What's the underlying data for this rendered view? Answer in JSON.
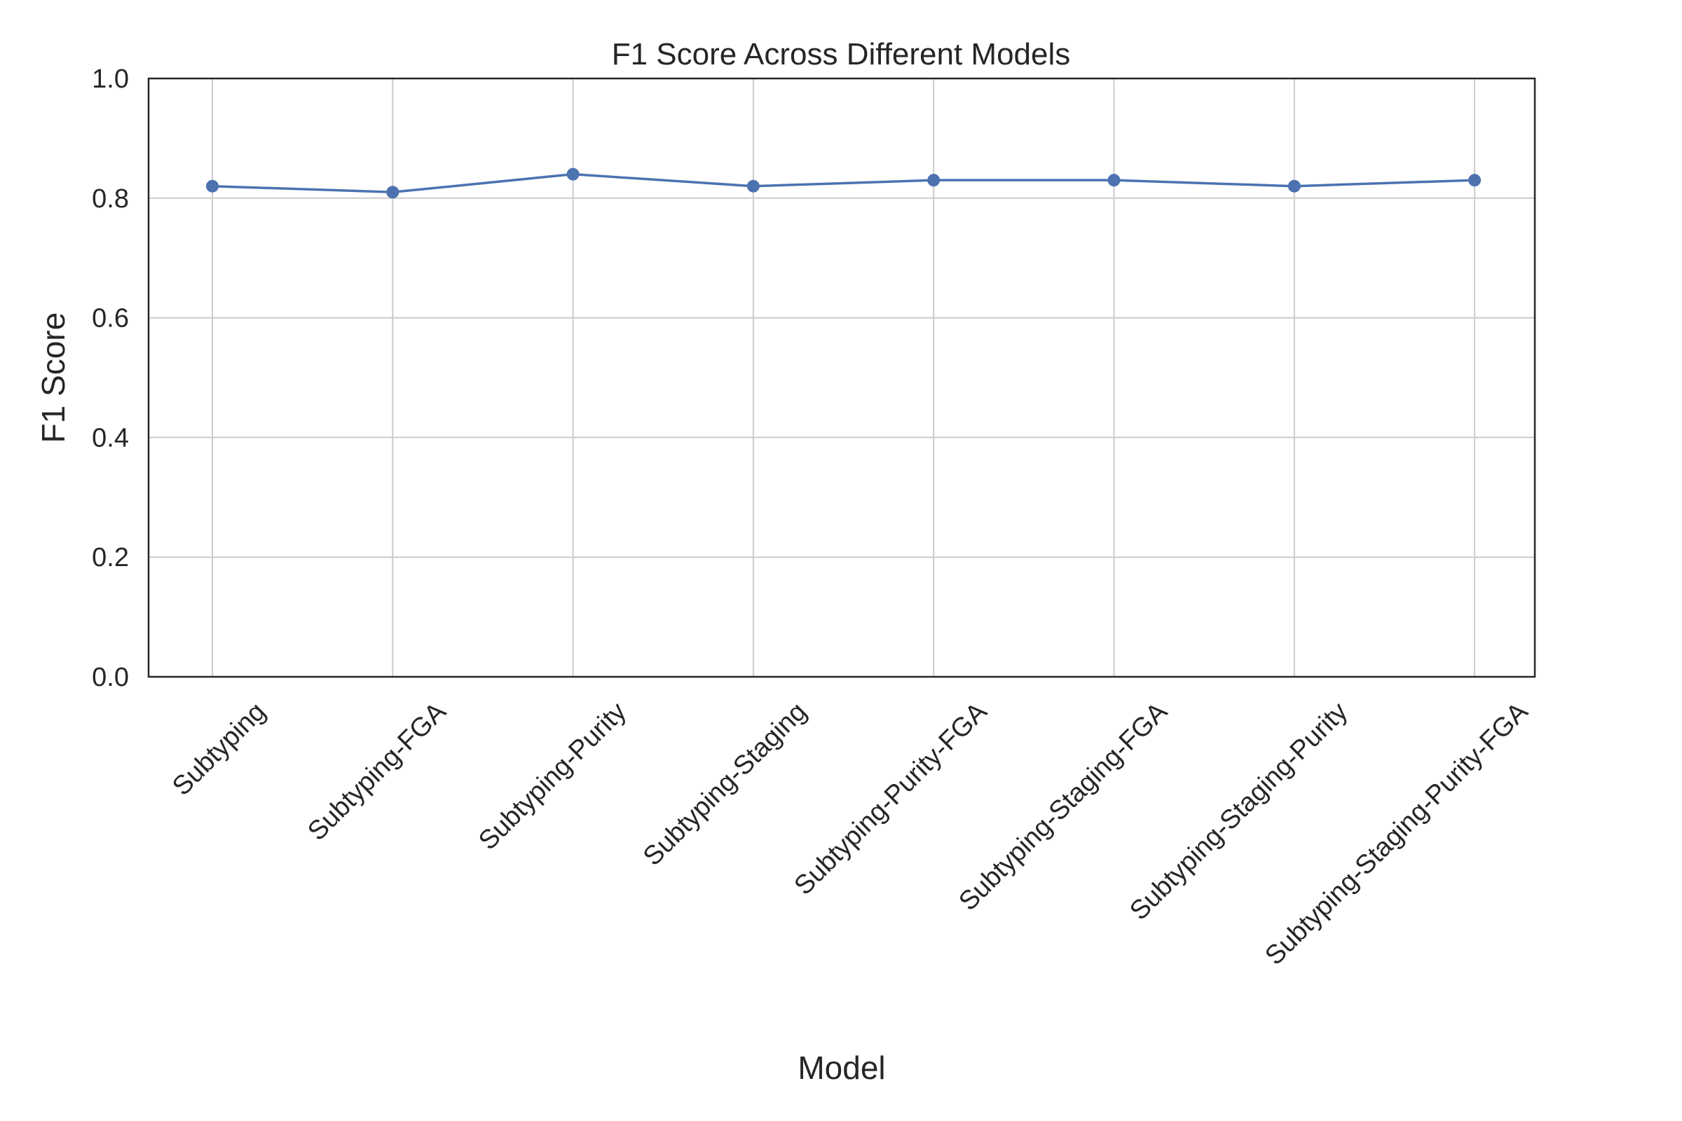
{
  "chart_data": {
    "type": "line",
    "title": "F1 Score Across Different Models",
    "xlabel": "Model",
    "ylabel": "F1 Score",
    "ylim": [
      0.0,
      1.0
    ],
    "yticks": [
      "0.0",
      "0.2",
      "0.4",
      "0.6",
      "0.8",
      "1.0"
    ],
    "grid": true,
    "categories": [
      "Subtyping",
      "Subtyping-FGA",
      "Subtyping-Purity",
      "Subtyping-Staging",
      "Subtyping-Purity-FGA",
      "Subtyping-Staging-FGA",
      "Subtyping-Staging-Purity",
      "Subtyping-Staging-Purity-FGA"
    ],
    "series": [
      {
        "values": [
          0.82,
          0.81,
          0.84,
          0.82,
          0.83,
          0.83,
          0.82,
          0.83
        ],
        "color": "#4c72b0",
        "marker": "circle"
      }
    ]
  }
}
